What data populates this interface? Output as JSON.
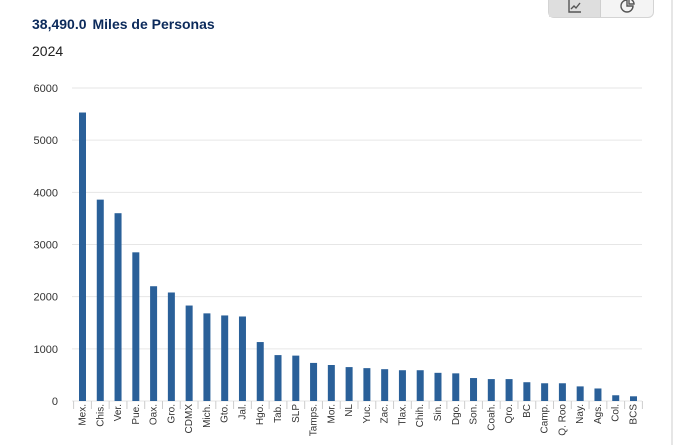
{
  "header": {
    "total": "38,490.0",
    "unit": "Miles de Personas",
    "year": "2024"
  },
  "toolbar": {
    "bar_view_icon": "bar-chart-icon",
    "pie_view_icon": "pie-chart-icon"
  },
  "colors": {
    "bar": "#2a6099",
    "grid": "#e6e6e6",
    "tick_text": "#333333",
    "headline": "#0b2a5b"
  },
  "chart_data": {
    "type": "bar",
    "categories": [
      "Mex.",
      "Chis.",
      "Ver.",
      "Pue.",
      "Oax.",
      "Gro.",
      "CDMX",
      "Mich.",
      "Gto.",
      "Jal.",
      "Hgo.",
      "Tab.",
      "SLP",
      "Tamps.",
      "Mor.",
      "NL",
      "Yuc.",
      "Zac.",
      "Tlax.",
      "Chih.",
      "Sin.",
      "Dgo.",
      "Son.",
      "Coah.",
      "Qro.",
      "BC",
      "Camp.",
      "Q. Roo",
      "Nay.",
      "Ags.",
      "Col.",
      "BCS"
    ],
    "values": [
      5530,
      3860,
      3600,
      2850,
      2200,
      2080,
      1830,
      1680,
      1640,
      1620,
      1130,
      880,
      870,
      730,
      690,
      650,
      630,
      610,
      590,
      590,
      540,
      530,
      440,
      420,
      420,
      360,
      340,
      340,
      280,
      240,
      110,
      90
    ],
    "ylim": [
      0,
      6000
    ],
    "yticks": [
      0,
      1000,
      2000,
      3000,
      4000,
      5000,
      6000
    ],
    "xlabel": "",
    "ylabel": "",
    "grid": true,
    "legend": "none"
  }
}
